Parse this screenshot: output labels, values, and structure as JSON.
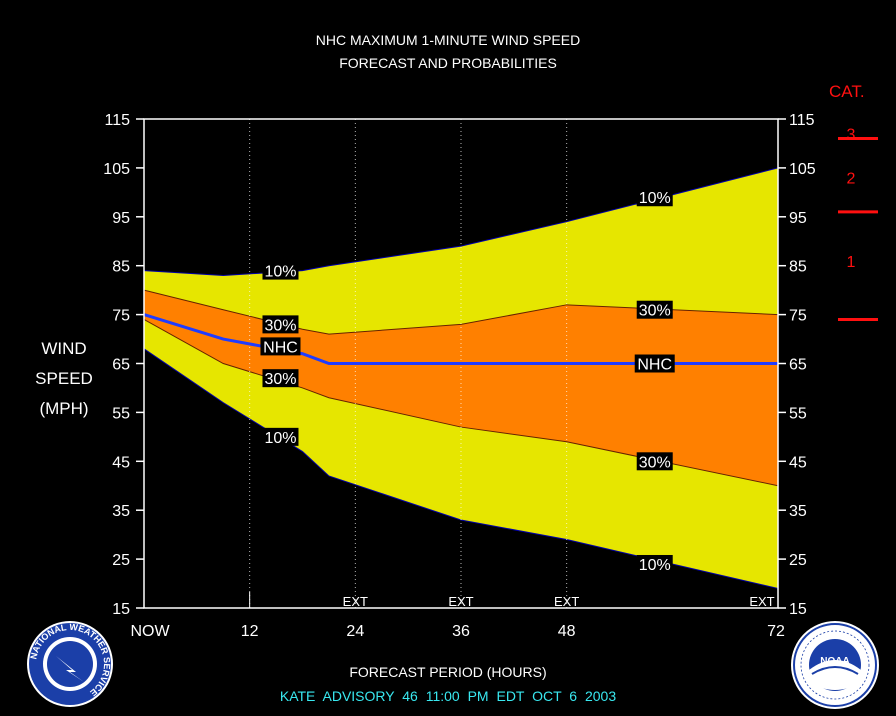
{
  "title": {
    "line1": "NHC MAXIMUM 1-MINUTE WIND SPEED",
    "line2": "FORECAST AND PROBABILITIES"
  },
  "advisory": "KATE   ADVISORY  46 11:00  PM  EDT  OCT  6  2003",
  "category_scale": {
    "title": "CAT.",
    "labels": [
      {
        "label": "3",
        "value": 112
      },
      {
        "label": "2",
        "value": 103
      },
      {
        "label": "1",
        "value": 86
      }
    ],
    "thresholds": [
      111,
      96,
      74
    ],
    "color": "#ff1010"
  },
  "logos": {
    "left_text": "NATIONAL WEATHER SERVICE",
    "right_text": "NOAA"
  },
  "colors": {
    "outer_band": "#e6e600",
    "inner_band": "#ff8000",
    "forecast_line": "#1f3cff",
    "band_edge": "#0000aa",
    "background": "#000000",
    "axis": "#ffffff",
    "advisory_text": "#39e8f0"
  },
  "chart_data": {
    "type": "area",
    "xlabel": "FORECAST PERIOD (HOURS)",
    "ylabel": [
      "WIND",
      "SPEED",
      "(MPH)"
    ],
    "xlim": [
      0,
      72
    ],
    "ylim": [
      15,
      115
    ],
    "x_ticks": [
      {
        "x": 0,
        "label": "NOW"
      },
      {
        "x": 12,
        "label": "12"
      },
      {
        "x": 24,
        "label": "24"
      },
      {
        "x": 36,
        "label": "36"
      },
      {
        "x": 48,
        "label": "48"
      },
      {
        "x": 72,
        "label": "72"
      }
    ],
    "y_ticks": [
      15,
      25,
      35,
      45,
      55,
      65,
      75,
      85,
      95,
      105,
      115
    ],
    "grid_x": [
      12,
      24,
      36,
      48
    ],
    "ext_labels": [
      {
        "x": 24,
        "label": "EXT"
      },
      {
        "x": 36,
        "label": "EXT"
      },
      {
        "x": 48,
        "label": "EXT"
      },
      {
        "x": 72,
        "label": "EXT"
      }
    ],
    "x": [
      0,
      9,
      18,
      21,
      36,
      48,
      72
    ],
    "series": [
      {
        "name": "10%",
        "values": [
          84,
          83,
          84,
          85,
          89,
          94,
          105
        ]
      },
      {
        "name": "30%",
        "values": [
          80,
          76,
          72,
          71,
          73,
          77,
          75
        ]
      },
      {
        "name": "NHC",
        "values": [
          75,
          70,
          67,
          65,
          65,
          65,
          65
        ]
      },
      {
        "name": "30%",
        "values": [
          74,
          65,
          60,
          58,
          52,
          49,
          40
        ]
      },
      {
        "name": "10%",
        "values": [
          68,
          57,
          47,
          42,
          33,
          29,
          19
        ]
      }
    ],
    "annotations": [
      {
        "text": "10%",
        "x": 15.5,
        "y": 84
      },
      {
        "text": "30%",
        "x": 15.5,
        "y": 73
      },
      {
        "text": "NHC",
        "x": 15.5,
        "y": 68.5
      },
      {
        "text": "30%",
        "x": 15.5,
        "y": 62
      },
      {
        "text": "10%",
        "x": 15.5,
        "y": 50
      },
      {
        "text": "10%",
        "x": 58,
        "y": 99
      },
      {
        "text": "30%",
        "x": 58,
        "y": 76
      },
      {
        "text": "NHC",
        "x": 58,
        "y": 65
      },
      {
        "text": "30%",
        "x": 58,
        "y": 45
      },
      {
        "text": "10%",
        "x": 58,
        "y": 24
      }
    ]
  }
}
